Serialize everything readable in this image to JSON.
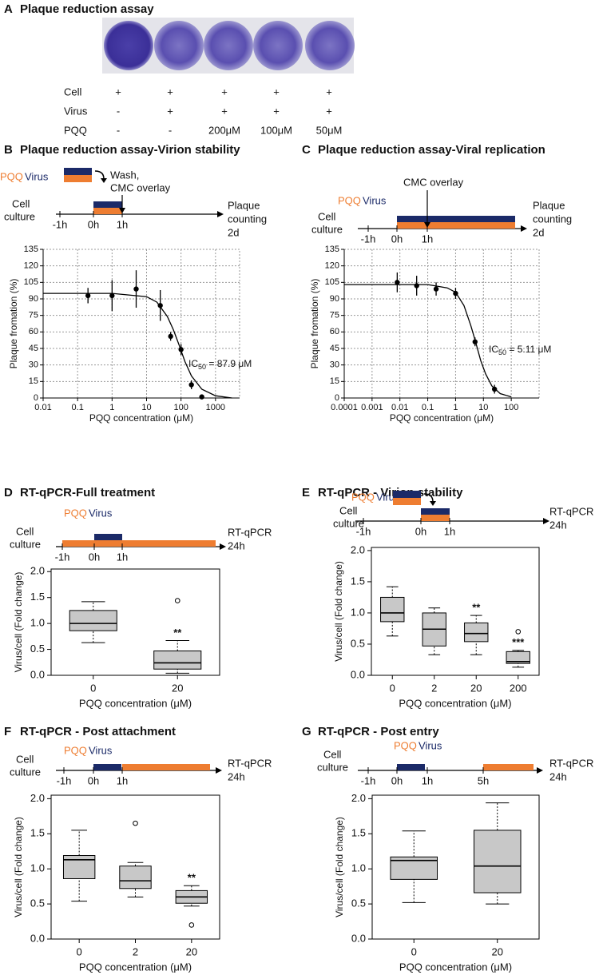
{
  "panel_a": {
    "label": "A",
    "title": "Plaque reduction assay",
    "rows": [
      [
        "Cell",
        "+",
        "+",
        "+",
        "+",
        "+"
      ],
      [
        "Virus",
        "-",
        "+",
        "+",
        "+",
        "+"
      ],
      [
        "PQQ",
        "-",
        "-",
        "200μM",
        "100μM",
        "50μM"
      ]
    ]
  },
  "chart_data": [
    {
      "panel": "B",
      "type": "scatter",
      "title": "Plaque reduction assay-Virion stability",
      "timeline": {
        "legend": [
          "PQQ",
          "Virus"
        ],
        "start": [
          "Cell",
          "culture"
        ],
        "ticks": [
          "-1h",
          "0h",
          "1h"
        ],
        "end": [
          "Plaque",
          "counting",
          "2d"
        ],
        "note": [
          "Wash,",
          "CMC overlay"
        ]
      },
      "x": [
        0.2,
        1,
        5,
        25,
        50,
        100,
        200,
        400
      ],
      "values": [
        93,
        93,
        99,
        84,
        56,
        44,
        12,
        1
      ],
      "errors": [
        7,
        14,
        17,
        14,
        4,
        5,
        4,
        1
      ],
      "curve": {
        "x": [
          0.01,
          0.1,
          1,
          10,
          20,
          40,
          60,
          88,
          130,
          200,
          400,
          1000,
          3000
        ],
        "values": [
          95,
          95,
          95,
          92,
          87,
          74,
          62,
          48,
          33,
          20,
          8,
          2,
          0
        ]
      },
      "annotation": {
        "main": "IC",
        "sub": "50",
        "rest": " = 87.9 μM"
      },
      "xlabel": "PQQ concentration (μM)",
      "ylabel": "Plaque fromation (%)",
      "xscale": "log",
      "xlim": [
        0.01,
        5000
      ],
      "xticks": [
        0.01,
        0.1,
        1,
        10,
        100,
        1000
      ],
      "ylim": [
        0,
        135
      ],
      "yticks": [
        0,
        15,
        30,
        45,
        60,
        75,
        90,
        105,
        120,
        135
      ],
      "grid": true,
      "color": "#000000"
    },
    {
      "panel": "C",
      "type": "scatter",
      "title": "Plaque reduction assay-Viral replication",
      "timeline": {
        "legend": [
          "PQQ",
          "Virus"
        ],
        "start": [
          "Cell",
          "culture"
        ],
        "ticks": [
          "-1h",
          "0h",
          "1h"
        ],
        "end": [
          "Plaque",
          "counting",
          "2d"
        ],
        "note": [
          "CMC overlay"
        ]
      },
      "x": [
        0.008,
        0.04,
        0.2,
        1,
        5,
        25
      ],
      "values": [
        105,
        102,
        99,
        95,
        51,
        8
      ],
      "errors": [
        9,
        9,
        6,
        5,
        4,
        4
      ],
      "curve": {
        "x": [
          0.0001,
          0.01,
          0.1,
          0.5,
          1,
          2,
          3.5,
          5.11,
          8,
          12,
          20,
          40,
          100
        ],
        "values": [
          103,
          103,
          103,
          100,
          96,
          84,
          66,
          52,
          34,
          22,
          11,
          4,
          1
        ]
      },
      "annotation": {
        "main": "IC",
        "sub": "50",
        "rest": " = 5.11 μM"
      },
      "xlabel": "PQQ concentration (μM)",
      "ylabel": "Plaque fromation (%)",
      "xscale": "log",
      "xlim": [
        0.0001,
        1000
      ],
      "xticks": [
        0.0001,
        0.001,
        0.01,
        0.1,
        1,
        10,
        100
      ],
      "ylim": [
        0,
        135
      ],
      "yticks": [
        0,
        15,
        30,
        45,
        60,
        75,
        90,
        105,
        120,
        135
      ],
      "grid": true,
      "color": "#000000"
    },
    {
      "panel": "D",
      "type": "box",
      "title": "RT-qPCR-Full treatment",
      "timeline": {
        "legend": [
          "PQQ",
          "Virus"
        ],
        "start": [
          "Cell",
          "culture"
        ],
        "ticks": [
          "-1h",
          "0h",
          "1h"
        ],
        "end": [
          "RT-qPCR",
          "24h"
        ]
      },
      "categories": [
        "0",
        "20"
      ],
      "boxes": [
        {
          "whisker_low": 0.63,
          "q1": 0.86,
          "median": 1.0,
          "q3": 1.25,
          "whisker_high": 1.42,
          "outliers": []
        },
        {
          "whisker_low": 0.04,
          "q1": 0.12,
          "median": 0.24,
          "q3": 0.47,
          "whisker_high": 0.67,
          "outliers": [
            1.44
          ],
          "annotation": "**"
        }
      ],
      "xlabel": "PQQ concentration (μM)",
      "ylabel": "Virus/cell (Fold change)",
      "ylim": [
        0,
        2.05
      ],
      "yticks": [
        {
          "value": 0,
          "label": "0.0"
        },
        {
          "value": 0.5,
          "label": "0.5"
        },
        {
          "value": 1,
          "label": "1.0"
        },
        {
          "value": 1.5,
          "label": "1.5"
        },
        {
          "value": 2,
          "label": "2.0"
        }
      ],
      "color": "#c8c8c8"
    },
    {
      "panel": "E",
      "type": "box",
      "title": "RT-qPCR - Virion stability",
      "timeline": {
        "legend": [
          "PQQ",
          "Virus"
        ],
        "start": [
          "Cell",
          "culture"
        ],
        "ticks": [
          "-1h",
          "0h",
          "1h"
        ],
        "end": [
          "RT-qPCR",
          "24h"
        ]
      },
      "categories": [
        "0",
        "2",
        "20",
        "200"
      ],
      "boxes": [
        {
          "whisker_low": 0.63,
          "q1": 0.86,
          "median": 1.0,
          "q3": 1.25,
          "whisker_high": 1.42,
          "outliers": []
        },
        {
          "whisker_low": 0.33,
          "q1": 0.47,
          "median": 0.74,
          "q3": 1.0,
          "whisker_high": 1.08,
          "outliers": []
        },
        {
          "whisker_low": 0.33,
          "q1": 0.54,
          "median": 0.67,
          "q3": 0.84,
          "whisker_high": 0.96,
          "outliers": [],
          "annotation": "**"
        },
        {
          "whisker_low": 0.13,
          "q1": 0.19,
          "median": 0.22,
          "q3": 0.38,
          "whisker_high": 0.4,
          "outliers": [
            0.7
          ],
          "annotation": "***"
        }
      ],
      "xlabel": "PQQ concentration (μM)",
      "ylabel": "Virus/cell (Fold change)",
      "ylim": [
        0,
        2.05
      ],
      "yticks": [
        {
          "value": 0,
          "label": "0.0"
        },
        {
          "value": 0.5,
          "label": "0.5"
        },
        {
          "value": 1,
          "label": "1.0"
        },
        {
          "value": 1.5,
          "label": "1.5"
        },
        {
          "value": 2,
          "label": "2.0"
        }
      ],
      "color": "#c8c8c8"
    },
    {
      "panel": "F",
      "type": "box",
      "title": "RT-qPCR - Post attachment",
      "timeline": {
        "legend": [
          "PQQ",
          "Virus"
        ],
        "start": [
          "Cell",
          "culture"
        ],
        "ticks": [
          "-1h",
          "0h",
          "1h"
        ],
        "end": [
          "RT-qPCR",
          "24h"
        ]
      },
      "categories": [
        "0",
        "2",
        "20"
      ],
      "boxes": [
        {
          "whisker_low": 0.54,
          "q1": 0.86,
          "median": 1.13,
          "q3": 1.19,
          "whisker_high": 1.55,
          "outliers": []
        },
        {
          "whisker_low": 0.6,
          "q1": 0.72,
          "median": 0.83,
          "q3": 1.04,
          "whisker_high": 1.09,
          "outliers": [
            1.65
          ]
        },
        {
          "whisker_low": 0.47,
          "q1": 0.51,
          "median": 0.6,
          "q3": 0.69,
          "whisker_high": 0.76,
          "outliers": [
            0.2
          ],
          "annotation": "**"
        }
      ],
      "xlabel": "PQQ concentration (μM)",
      "ylabel": "Virus/cell (Fold change)",
      "ylim": [
        0,
        2.05
      ],
      "yticks": [
        {
          "value": 0,
          "label": "0.0"
        },
        {
          "value": 0.5,
          "label": "0.5"
        },
        {
          "value": 1,
          "label": "1.0"
        },
        {
          "value": 1.5,
          "label": "1.5"
        },
        {
          "value": 2,
          "label": "2.0"
        }
      ],
      "color": "#c8c8c8"
    },
    {
      "panel": "G",
      "type": "box",
      "title": "RT-qPCR - Post entry",
      "timeline": {
        "legend": [
          "PQQ",
          "Virus"
        ],
        "start": [
          "Cell",
          "culture"
        ],
        "ticks": [
          "-1h",
          "0h",
          "1h",
          "5h"
        ],
        "end": [
          "RT-qPCR",
          "24h"
        ]
      },
      "categories": [
        "0",
        "20"
      ],
      "boxes": [
        {
          "whisker_low": 0.52,
          "q1": 0.85,
          "median": 1.12,
          "q3": 1.17,
          "whisker_high": 1.54,
          "outliers": []
        },
        {
          "whisker_low": 0.5,
          "q1": 0.66,
          "median": 1.04,
          "q3": 1.55,
          "whisker_high": 1.94,
          "outliers": []
        }
      ],
      "xlabel": "PQQ concentration (μM)",
      "ylabel": "Virus/cell (Fold change)",
      "ylim": [
        0,
        2.05
      ],
      "yticks": [
        {
          "value": 0,
          "label": "0.0"
        },
        {
          "value": 0.5,
          "label": "0.5"
        },
        {
          "value": 1,
          "label": "1.0"
        },
        {
          "value": 1.5,
          "label": "1.5"
        },
        {
          "value": 2,
          "label": "2.0"
        }
      ],
      "color": "#c8c8c8"
    }
  ]
}
